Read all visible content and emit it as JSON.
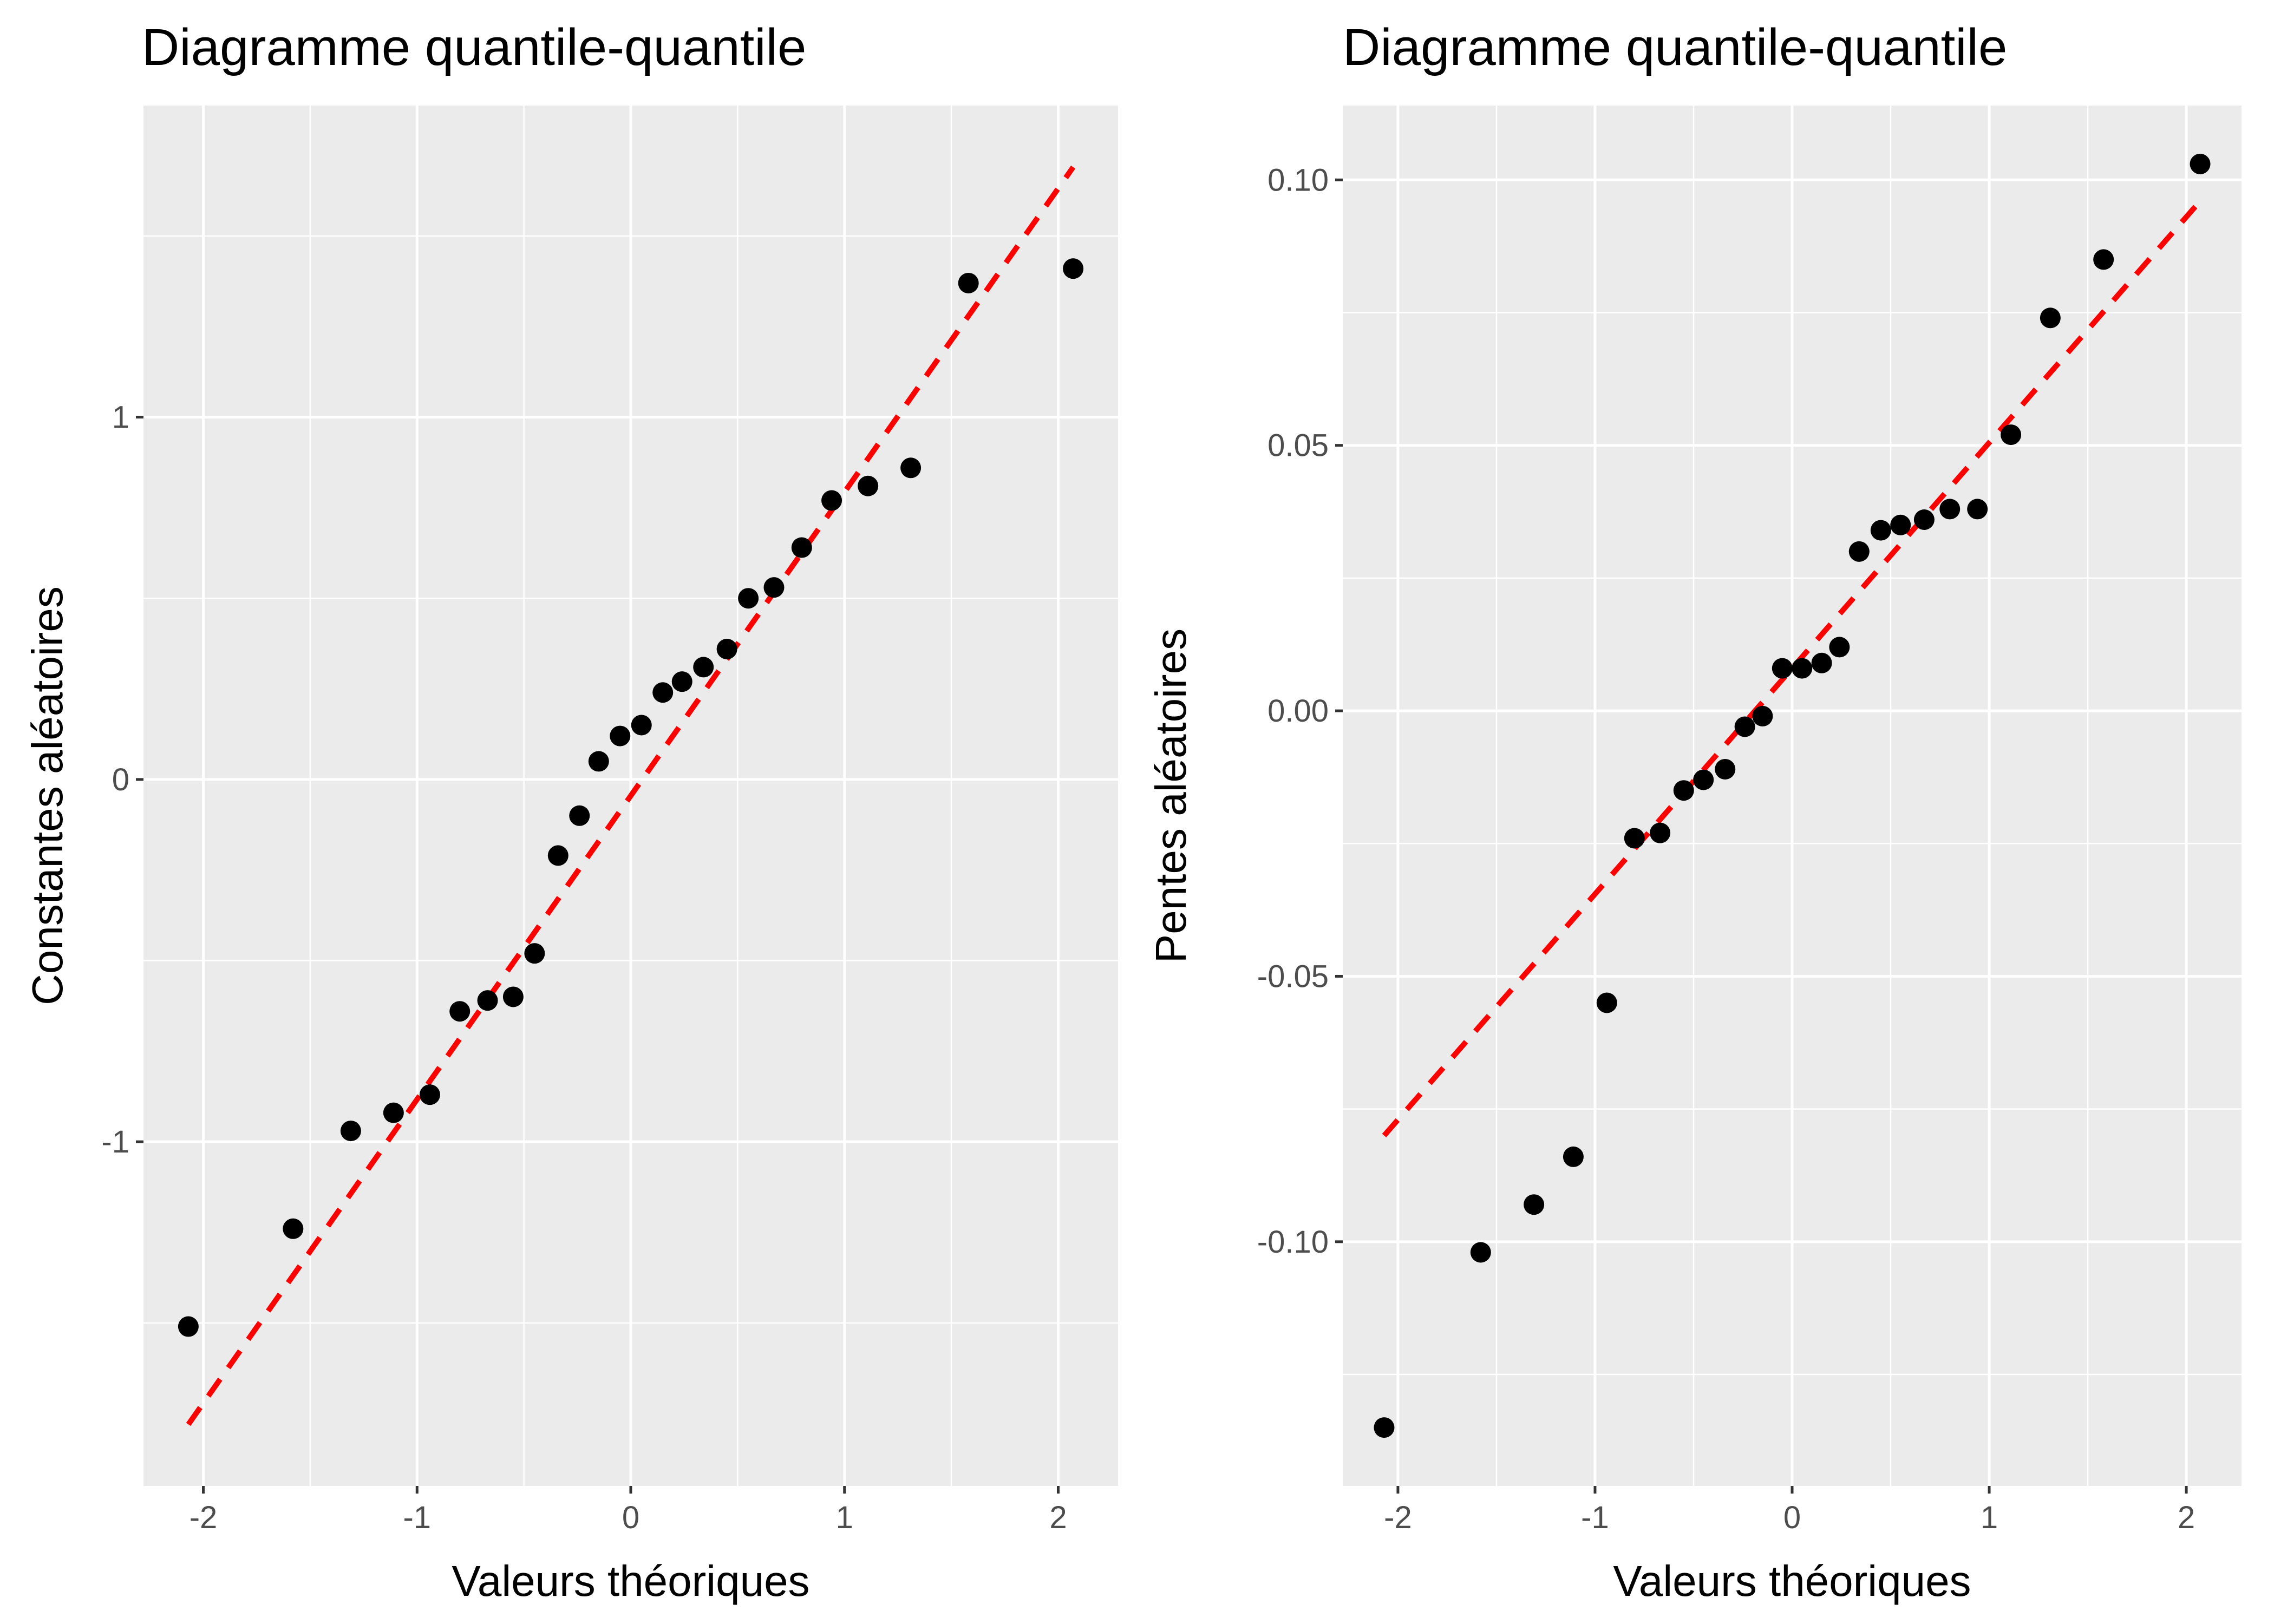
{
  "chart_data": [
    {
      "type": "scatter",
      "title": "Diagramme quantile-quantile",
      "xlabel": "Valeurs théoriques",
      "ylabel": "Constantes aléatoires",
      "xlim": [
        -2.28,
        2.28
      ],
      "ylim": [
        -1.95,
        1.86
      ],
      "xticks": [
        -2,
        -1,
        0,
        1,
        2
      ],
      "xtick_labels": [
        "-2",
        "-1",
        "0",
        "1",
        "2"
      ],
      "yticks": [
        -1,
        0,
        1
      ],
      "ytick_labels": [
        "-1",
        "0",
        "1"
      ],
      "grid": true,
      "legend": "none",
      "reference_line": {
        "x": [
          -2.07,
          2.07
        ],
        "y": [
          -1.78,
          1.69
        ],
        "color": "#ff0000",
        "style": "dashed"
      },
      "x": [
        -2.07,
        -1.58,
        -1.31,
        -1.11,
        -0.94,
        -0.8,
        -0.67,
        -0.55,
        -0.45,
        -0.34,
        -0.24,
        -0.15,
        -0.05,
        0.05,
        0.15,
        0.24,
        0.34,
        0.45,
        0.55,
        0.67,
        0.8,
        0.94,
        1.11,
        1.31,
        1.58,
        2.07
      ],
      "y": [
        -1.51,
        -1.24,
        -0.97,
        -0.92,
        -0.87,
        -0.64,
        -0.61,
        -0.6,
        -0.48,
        -0.21,
        -0.1,
        0.05,
        0.12,
        0.15,
        0.24,
        0.27,
        0.31,
        0.36,
        0.5,
        0.53,
        0.64,
        0.77,
        0.81,
        0.86,
        1.37,
        1.41
      ]
    },
    {
      "type": "scatter",
      "title": "Diagramme quantile-quantile",
      "xlabel": "Valeurs théoriques",
      "ylabel": "Pentes aléatoires",
      "xlim": [
        -2.28,
        2.28
      ],
      "ylim": [
        -0.146,
        0.114
      ],
      "xticks": [
        -2,
        -1,
        0,
        1,
        2
      ],
      "xtick_labels": [
        "-2",
        "-1",
        "0",
        "1",
        "2"
      ],
      "yticks": [
        -0.1,
        -0.05,
        0.0,
        0.05,
        0.1
      ],
      "ytick_labels": [
        "-0.10",
        "-0.05",
        "0.00",
        "0.05",
        "0.10"
      ],
      "grid": true,
      "legend": "none",
      "reference_line": {
        "x": [
          -2.07,
          2.07
        ],
        "y": [
          -0.08,
          0.096
        ],
        "color": "#ff0000",
        "style": "dashed"
      },
      "x": [
        -2.07,
        -1.58,
        -1.31,
        -1.11,
        -0.94,
        -0.8,
        -0.67,
        -0.55,
        -0.45,
        -0.34,
        -0.24,
        -0.15,
        -0.05,
        0.05,
        0.15,
        0.24,
        0.34,
        0.45,
        0.55,
        0.67,
        0.8,
        0.94,
        1.11,
        1.31,
        1.58,
        2.07
      ],
      "y": [
        -0.135,
        -0.102,
        -0.093,
        -0.084,
        -0.055,
        -0.024,
        -0.023,
        -0.015,
        -0.013,
        -0.011,
        -0.003,
        -0.001,
        0.008,
        0.008,
        0.009,
        0.012,
        0.03,
        0.034,
        0.035,
        0.036,
        0.038,
        0.038,
        0.052,
        0.074,
        0.085,
        0.103
      ]
    }
  ]
}
